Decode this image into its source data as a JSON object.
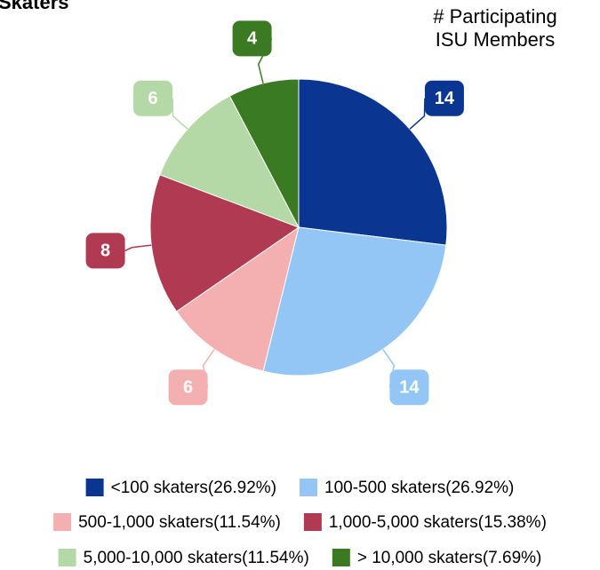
{
  "chart_data": {
    "type": "pie",
    "title": "Skaters",
    "subtitle": [
      "# Participating",
      "ISU Members"
    ],
    "categories": [
      "<100 skaters(26.92%)",
      "100-500 skaters(26.92%)",
      "500-1,000 skaters(11.54%)",
      "1,000-5,000 skaters(15.38%)",
      "5,000-10,000 skaters(11.54%)",
      "> 10,000 skaters(7.69%)"
    ],
    "values": [
      14,
      14,
      6,
      8,
      6,
      4
    ],
    "colors": [
      "#0a3590",
      "#93c6f5",
      "#f4b0b0",
      "#b03a52",
      "#b5d9a6",
      "#3a7a22"
    ]
  }
}
